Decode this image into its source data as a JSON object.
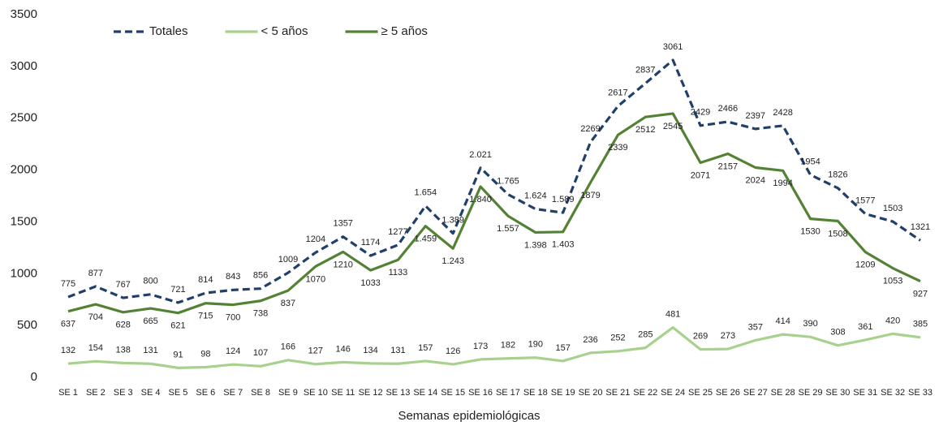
{
  "chart_data": {
    "type": "line",
    "x_label": "Semanas epidemiológicas",
    "categories": [
      "SE 1",
      "SE 2",
      "SE 3",
      "SE 4",
      "SE 5",
      "SE 6",
      "SE 7",
      "SE 8",
      "SE 9",
      "SE 10",
      "SE 11",
      "SE 12",
      "SE 13",
      "SE 14",
      "SE 15",
      "SE 16",
      "SE 17",
      "SE 18",
      "SE 19",
      "SE 20",
      "SE 21",
      "SE 22",
      "SE 24",
      "SE 25",
      "SE 26",
      "SE 27",
      "SE 28",
      "SE 29",
      "SE 30",
      "SE 31",
      "SE 32",
      "SE 33"
    ],
    "series": [
      {
        "name": "Totales",
        "color": "#203f6b",
        "dash": true,
        "label_position": "above",
        "values": [
          775,
          877,
          767,
          800,
          721,
          814,
          843,
          856,
          1009,
          1204,
          1357,
          1174,
          1277,
          1654,
          1389,
          2021,
          1765,
          1624,
          1589,
          2269,
          2617,
          2837,
          3061,
          2429,
          2466,
          2397,
          2428,
          1954,
          1826,
          1577,
          1503,
          1321
        ],
        "value_labels": [
          "775",
          "877",
          "767",
          "800",
          "721",
          "814",
          "843",
          "856",
          "1009",
          "1204",
          "1357",
          "1174",
          "1277",
          "1.654",
          "1.389",
          "2.021",
          "1.765",
          "1.624",
          "1.589",
          "2269",
          "2617",
          "2837",
          "3061",
          "2429",
          "2466",
          "2397",
          "2428",
          "1954",
          "1826",
          "1577",
          "1503",
          "1321"
        ]
      },
      {
        "name": "< 5 años",
        "color": "#a9d18e",
        "dash": false,
        "label_position": "above",
        "values": [
          132,
          154,
          138,
          131,
          91,
          98,
          124,
          107,
          166,
          127,
          146,
          134,
          131,
          157,
          126,
          173,
          182,
          190,
          157,
          236,
          252,
          285,
          481,
          269,
          273,
          357,
          414,
          390,
          308,
          361,
          420,
          385
        ]
      },
      {
        "name": "≥ 5 años",
        "color": "#548235",
        "dash": false,
        "label_position": "below",
        "values": [
          637,
          704,
          628,
          665,
          621,
          715,
          700,
          738,
          837,
          1070,
          1210,
          1033,
          1133,
          1459,
          1243,
          1840,
          1557,
          1398,
          1403,
          1879,
          2339,
          2512,
          2545,
          2071,
          2157,
          2024,
          1994,
          1530,
          1508,
          1209,
          1053,
          927
        ],
        "value_labels": [
          "637",
          "704",
          "628",
          "665",
          "621",
          "715",
          "700",
          "738",
          "837",
          "1070",
          "1210",
          "1033",
          "1133",
          "1.459",
          "1.243",
          "1.840",
          "1.557",
          "1.398",
          "1.403",
          "1879",
          "2339",
          "2512",
          "2545",
          "2071",
          "2157",
          "2024",
          "1994",
          "1530",
          "1508",
          "1209",
          "1053",
          "927"
        ]
      }
    ],
    "ylim": [
      0,
      3500
    ],
    "yticks": [
      0,
      500,
      1000,
      1500,
      2000,
      2500,
      3000,
      3500
    ],
    "grid": false,
    "legend": "top-left"
  }
}
